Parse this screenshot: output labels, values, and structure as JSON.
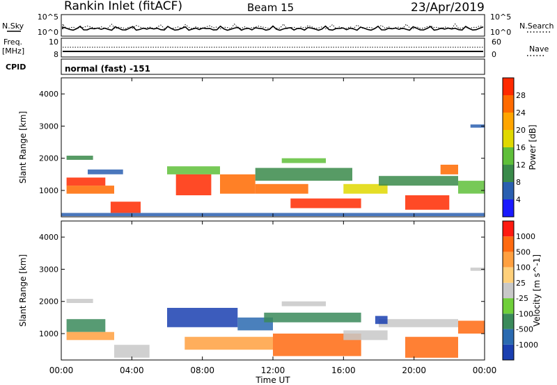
{
  "header": {
    "title": "Rankin Inlet (fitACF)",
    "beam": "Beam 15",
    "date": "23/Apr/2019"
  },
  "noise_panel": {
    "left_label": "N.Sky",
    "right_label": "N.Search",
    "left_ticks": [
      "10^5",
      "10^0"
    ],
    "right_ticks": [
      "10^5",
      "10^0"
    ]
  },
  "freq_panel": {
    "left_label_1": "Freq.",
    "left_label_2": "[MHz]",
    "left_ticks": [
      "10",
      "8"
    ],
    "right_label": "Nave",
    "right_ticks": [
      "60",
      "0"
    ]
  },
  "cpid": {
    "label": "CPID",
    "mode": "normal (fast) -151"
  },
  "time_axis": {
    "label": "Time UT",
    "ticks": [
      "00:00",
      "04:00",
      "08:00",
      "12:00",
      "16:00",
      "20:00",
      "00:00"
    ]
  },
  "chart_data": [
    {
      "type": "heatmap",
      "name_panel": "power",
      "xlabel": "Time UT",
      "ylabel": "Slant Range [km]",
      "xlim_hours": [
        0,
        24
      ],
      "ylim": [
        180,
        4500
      ],
      "yticks": [
        1000,
        2000,
        3000,
        4000
      ],
      "colorbar": {
        "label": "Power [dB]",
        "ticks": [
          "4",
          "8",
          "12",
          "16",
          "20",
          "24",
          "28"
        ],
        "colors": [
          "#1a1aff",
          "#2a5fb0",
          "#3a8a4a",
          "#5fbf3a",
          "#e0d800",
          "#ffa500",
          "#ff6a00",
          "#ff2a00"
        ]
      },
      "regions": [
        {
          "t0": 0.3,
          "t1": 1.8,
          "r0": 1950,
          "r1": 2080,
          "c": "#3a8a4a"
        },
        {
          "t0": 0.3,
          "t1": 2.5,
          "r0": 1150,
          "r1": 1400,
          "c": "#ff2a00"
        },
        {
          "t0": 0.3,
          "t1": 3.0,
          "r0": 900,
          "r1": 1150,
          "c": "#ff6a00"
        },
        {
          "t0": 1.5,
          "t1": 3.5,
          "r0": 1500,
          "r1": 1650,
          "c": "#2a5fb0"
        },
        {
          "t0": 2.8,
          "t1": 4.5,
          "r0": 300,
          "r1": 650,
          "c": "#ff2a00"
        },
        {
          "t0": 6.0,
          "t1": 9.0,
          "r0": 1500,
          "r1": 1750,
          "c": "#5fbf3a"
        },
        {
          "t0": 6.5,
          "t1": 8.5,
          "r0": 850,
          "r1": 1500,
          "c": "#ff2a00"
        },
        {
          "t0": 9.0,
          "t1": 11.0,
          "r0": 900,
          "r1": 1500,
          "c": "#ff6a00"
        },
        {
          "t0": 11.0,
          "t1": 16.5,
          "r0": 1300,
          "r1": 1700,
          "c": "#3a8a4a"
        },
        {
          "t0": 12.5,
          "t1": 15.0,
          "r0": 1850,
          "r1": 2000,
          "c": "#5fbf3a"
        },
        {
          "t0": 11.0,
          "t1": 14.0,
          "r0": 900,
          "r1": 1200,
          "c": "#ff6a00"
        },
        {
          "t0": 13.0,
          "t1": 17.0,
          "r0": 450,
          "r1": 750,
          "c": "#ff2a00"
        },
        {
          "t0": 16.0,
          "t1": 18.5,
          "r0": 900,
          "r1": 1200,
          "c": "#e0d800"
        },
        {
          "t0": 18.0,
          "t1": 22.5,
          "r0": 1150,
          "r1": 1450,
          "c": "#3a8a4a"
        },
        {
          "t0": 19.5,
          "t1": 22.0,
          "r0": 400,
          "r1": 850,
          "c": "#ff2a00"
        },
        {
          "t0": 21.5,
          "t1": 22.5,
          "r0": 1500,
          "r1": 1800,
          "c": "#ff6a00"
        },
        {
          "t0": 22.5,
          "t1": 24.0,
          "r0": 900,
          "r1": 1300,
          "c": "#5fbf3a"
        },
        {
          "t0": 23.2,
          "t1": 24.0,
          "r0": 2950,
          "r1": 3050,
          "c": "#2a5fb0"
        },
        {
          "t0": 0.0,
          "t1": 24.0,
          "r0": 200,
          "r1": 300,
          "c": "#2a5fb0"
        }
      ]
    },
    {
      "type": "heatmap",
      "name_panel": "velocity",
      "xlabel": "Time UT",
      "ylabel": "Slant Range [km]",
      "xlim_hours": [
        0,
        24
      ],
      "ylim": [
        180,
        4500
      ],
      "yticks": [
        1000,
        2000,
        3000,
        4000
      ],
      "colorbar": {
        "label": "Velocity [m s^-1]",
        "ticks": [
          "1000",
          "500",
          "100",
          "25",
          "-25",
          "-100",
          "-500",
          "-1000"
        ],
        "colors": [
          "#1a3fb0",
          "#2a6ab0",
          "#3a8a5a",
          "#6fcf3a",
          "#c8c8c8",
          "#ffd07a",
          "#ffa040",
          "#ff6a10",
          "#ff1a10"
        ]
      },
      "regions": [
        {
          "t0": 0.3,
          "t1": 1.8,
          "r0": 1950,
          "r1": 2080,
          "c": "#c8c8c8"
        },
        {
          "t0": 0.3,
          "t1": 2.5,
          "r0": 1050,
          "r1": 1450,
          "c": "#3a8a5a"
        },
        {
          "t0": 0.3,
          "t1": 3.0,
          "r0": 800,
          "r1": 1050,
          "c": "#ffa040"
        },
        {
          "t0": 3.0,
          "t1": 5.0,
          "r0": 250,
          "r1": 650,
          "c": "#c8c8c8"
        },
        {
          "t0": 6.0,
          "t1": 10.0,
          "r0": 1200,
          "r1": 1800,
          "c": "#1a3fb0"
        },
        {
          "t0": 10.0,
          "t1": 12.0,
          "r0": 1100,
          "r1": 1500,
          "c": "#2a6ab0"
        },
        {
          "t0": 7.0,
          "t1": 12.0,
          "r0": 500,
          "r1": 900,
          "c": "#ffa040"
        },
        {
          "t0": 11.5,
          "t1": 17.0,
          "r0": 1350,
          "r1": 1650,
          "c": "#3a8a5a"
        },
        {
          "t0": 12.5,
          "t1": 15.0,
          "r0": 1850,
          "r1": 2000,
          "c": "#c8c8c8"
        },
        {
          "t0": 12.0,
          "t1": 17.0,
          "r0": 300,
          "r1": 1000,
          "c": "#ff6a10"
        },
        {
          "t0": 16.0,
          "t1": 18.5,
          "r0": 800,
          "r1": 1100,
          "c": "#c8c8c8"
        },
        {
          "t0": 18.0,
          "t1": 22.5,
          "r0": 1200,
          "r1": 1450,
          "c": "#c8c8c8"
        },
        {
          "t0": 19.5,
          "t1": 22.5,
          "r0": 250,
          "r1": 900,
          "c": "#ff6a10"
        },
        {
          "t0": 22.5,
          "t1": 24.0,
          "r0": 1000,
          "r1": 1400,
          "c": "#ff6a10"
        },
        {
          "t0": 23.2,
          "t1": 24.0,
          "r0": 2950,
          "r1": 3050,
          "c": "#c8c8c8"
        },
        {
          "t0": 17.8,
          "t1": 18.5,
          "r0": 1300,
          "r1": 1550,
          "c": "#1a3fb0"
        }
      ]
    }
  ]
}
